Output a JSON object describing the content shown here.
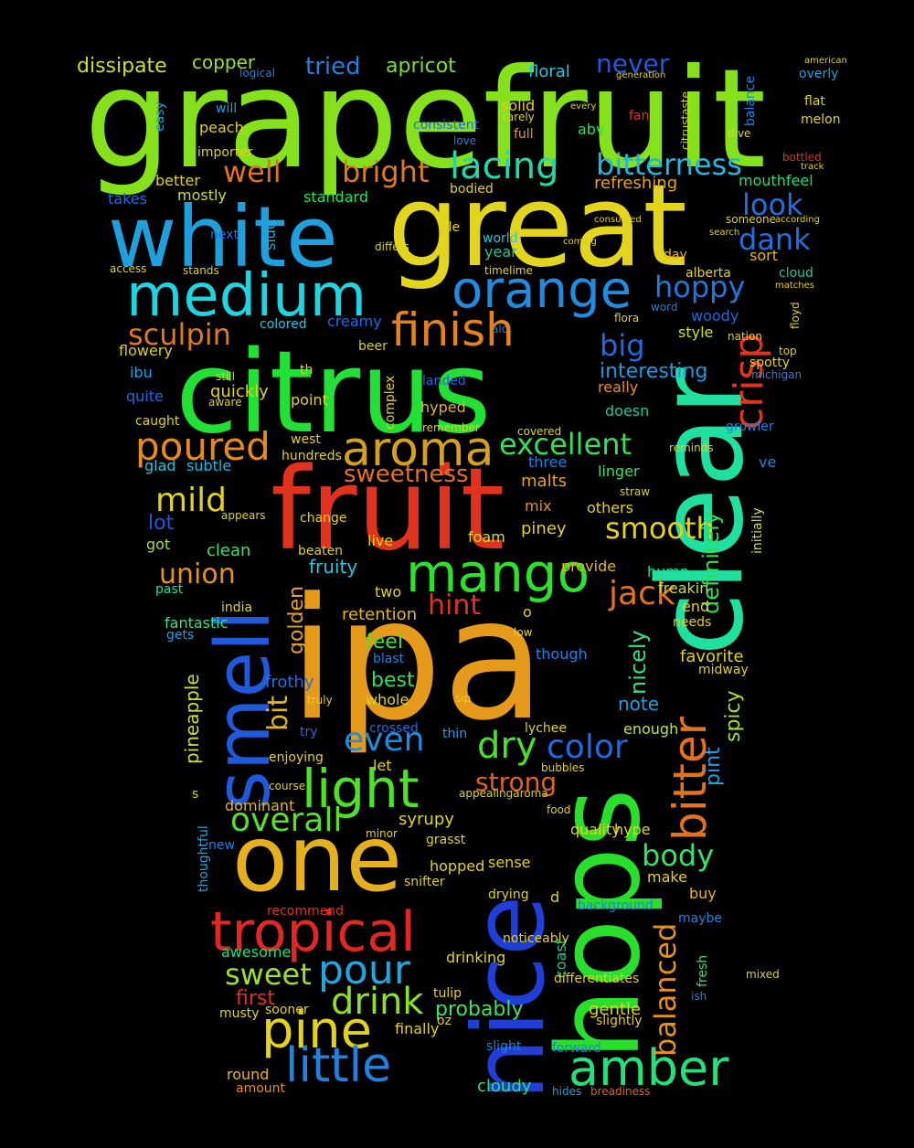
{
  "words": [
    {
      "text": "grapefruit",
      "color": "#84e11c"
    },
    {
      "text": "great",
      "color": "#e3d41e"
    },
    {
      "text": "white",
      "color": "#1fa0dc"
    },
    {
      "text": "citrus",
      "color": "#22e034"
    },
    {
      "text": "fruit",
      "color": "#e0321c"
    },
    {
      "text": "ipa",
      "color": "#e59a1b"
    },
    {
      "text": "clear",
      "color": "#1fe0a0"
    },
    {
      "text": "hops",
      "color": "#28e02c"
    },
    {
      "text": "nice",
      "color": "#1f3fd8"
    },
    {
      "text": "smell",
      "color": "#1f5adc"
    },
    {
      "text": "one",
      "color": "#e5b01d"
    },
    {
      "text": "medium",
      "color": "#1fd4e0"
    },
    {
      "text": "orange",
      "color": "#1f8ce0"
    },
    {
      "text": "tropical",
      "color": "#e02820"
    },
    {
      "text": "bitter",
      "color": "#e5721b"
    },
    {
      "text": "mango",
      "color": "#2ee02a"
    },
    {
      "text": "light",
      "color": "#4fe02a"
    },
    {
      "text": "aroma",
      "color": "#d6a01d"
    },
    {
      "text": "pine",
      "color": "#e2d21c"
    },
    {
      "text": "little",
      "color": "#1f82e0"
    },
    {
      "text": "amber",
      "color": "#24e07a"
    },
    {
      "text": "finish",
      "color": "#e5821b"
    },
    {
      "text": "poured",
      "color": "#e58a1b"
    },
    {
      "text": "crisp",
      "color": "#e0351c"
    },
    {
      "text": "pour",
      "color": "#1fa8e0"
    },
    {
      "text": "overall",
      "color": "#56e02a"
    },
    {
      "text": "lacing",
      "color": "#22d8a8"
    },
    {
      "text": "bitterness",
      "color": "#1fb8e0"
    },
    {
      "text": "excellent",
      "color": "#32e05a"
    },
    {
      "text": "sweetness",
      "color": "#e5721b"
    },
    {
      "text": "smooth",
      "color": "#e5d01b"
    },
    {
      "text": "dank",
      "color": "#1f70e0"
    },
    {
      "text": "look",
      "color": "#1f70e0"
    },
    {
      "text": "hoppy",
      "color": "#1f78dc"
    },
    {
      "text": "bright",
      "color": "#e07a1c"
    },
    {
      "text": "well",
      "color": "#e2701c"
    },
    {
      "text": "sculpin",
      "color": "#e0781c"
    },
    {
      "text": "mild",
      "color": "#e5d01b"
    },
    {
      "text": "union",
      "color": "#e5921b"
    },
    {
      "text": "jack",
      "color": "#e5721b"
    },
    {
      "text": "hint",
      "color": "#e0321c"
    },
    {
      "text": "even",
      "color": "#1f8ce0"
    },
    {
      "text": "dry",
      "color": "#48e02a"
    },
    {
      "text": "color",
      "color": "#1f6ae0"
    },
    {
      "text": "strong",
      "color": "#e0621c"
    },
    {
      "text": "body",
      "color": "#36e06a"
    },
    {
      "text": "drink",
      "color": "#8ce02a"
    },
    {
      "text": "sweet",
      "color": "#9ce02a"
    },
    {
      "text": "balanced",
      "color": "#e5921b"
    },
    {
      "text": "big",
      "color": "#1f6ae0"
    },
    {
      "text": "interesting",
      "color": "#1f9ae0"
    },
    {
      "text": "definitely",
      "color": "#26e052"
    },
    {
      "text": "golden",
      "color": "#e5a21b"
    },
    {
      "text": "bit",
      "color": "#e5b61b"
    },
    {
      "text": "nicely",
      "color": "#32e07a"
    },
    {
      "text": "spicy",
      "color": "#a8e02a"
    },
    {
      "text": "pint",
      "color": "#1fa0e0"
    },
    {
      "text": "probably",
      "color": "#3ee062"
    },
    {
      "text": "first",
      "color": "#e0321c"
    },
    {
      "text": "pineapple",
      "color": "#c8e02a"
    },
    {
      "text": "gentle",
      "color": "#e2d21c"
    },
    {
      "text": "cloudy",
      "color": "#2ee06a"
    },
    {
      "text": "never",
      "color": "#1f58e0"
    },
    {
      "text": "tried",
      "color": "#1f82e0"
    },
    {
      "text": "apricot",
      "color": "#7ce02a"
    },
    {
      "text": "dissipate",
      "color": "#c8e02a"
    },
    {
      "text": "copper",
      "color": "#a0e02a"
    },
    {
      "text": "floral",
      "color": "#22c8e0"
    },
    {
      "text": "refreshing",
      "color": "#e5a21b"
    },
    {
      "text": "mouthfeel",
      "color": "#1ae078"
    },
    {
      "text": "frothy",
      "color": "#1f70e0"
    },
    {
      "text": "best",
      "color": "#2ee05a"
    },
    {
      "text": "whole",
      "color": "#e2d21c"
    },
    {
      "text": "favorite",
      "color": "#e2d21c"
    },
    {
      "text": "note",
      "color": "#1fa0e0"
    },
    {
      "text": "feel",
      "color": "#4fe02a"
    },
    {
      "text": "lot",
      "color": "#1f58e0"
    },
    {
      "text": "clean",
      "color": "#3ee06a"
    },
    {
      "text": "fantastic",
      "color": "#38e08a"
    },
    {
      "text": "retention",
      "color": "#e5b61b"
    },
    {
      "text": "fruity",
      "color": "#22c8e0"
    },
    {
      "text": "foam",
      "color": "#c8e02a"
    },
    {
      "text": "malts",
      "color": "#e0a21c"
    },
    {
      "text": "piney",
      "color": "#e2d21c"
    },
    {
      "text": "hump",
      "color": "#22e0a0"
    },
    {
      "text": "provide",
      "color": "#e5b61b"
    },
    {
      "text": "others",
      "color": "#e5d01b"
    },
    {
      "text": "linger",
      "color": "#36e06a"
    },
    {
      "text": "three",
      "color": "#1f82e0"
    },
    {
      "text": "live",
      "color": "#e2d21c"
    },
    {
      "text": "mix",
      "color": "#e5921b"
    },
    {
      "text": "two",
      "color": "#e2d21c"
    },
    {
      "text": "glad",
      "color": "#22c8e0"
    },
    {
      "text": "subtle",
      "color": "#1fb8e0"
    },
    {
      "text": "got",
      "color": "#a8e02a"
    },
    {
      "text": "past",
      "color": "#1ae0a0"
    },
    {
      "text": "sort",
      "color": "#e5b61b"
    },
    {
      "text": "woody",
      "color": "#1f6ae0"
    },
    {
      "text": "style",
      "color": "#c8e02a"
    },
    {
      "text": "doesn",
      "color": "#1ac8a0"
    },
    {
      "text": "really",
      "color": "#e5921b"
    },
    {
      "text": "hyped",
      "color": "#e5b61b"
    },
    {
      "text": "quickly",
      "color": "#e2d21c"
    },
    {
      "text": "caught",
      "color": "#e2d21c"
    },
    {
      "text": "quite",
      "color": "#1f6ae0"
    },
    {
      "text": "ibu",
      "color": "#1fa0e0"
    },
    {
      "text": "flowery",
      "color": "#d8d21c"
    },
    {
      "text": "colored",
      "color": "#22c8e0"
    },
    {
      "text": "creamy",
      "color": "#1f6ae0"
    },
    {
      "text": "beer",
      "color": "#d8d21c"
    },
    {
      "text": "abv",
      "color": "#26e05a"
    },
    {
      "text": "fan",
      "color": "#e0321c"
    },
    {
      "text": "full",
      "color": "#e59a1b"
    },
    {
      "text": "solid",
      "color": "#e5d01b"
    },
    {
      "text": "peach",
      "color": "#e2d21c"
    },
    {
      "text": "better",
      "color": "#e2d21c"
    },
    {
      "text": "mostly",
      "color": "#c8e02a"
    },
    {
      "text": "takes",
      "color": "#1f6ae0"
    },
    {
      "text": "standard",
      "color": "#26e05a"
    },
    {
      "text": "bodied",
      "color": "#e2d21c"
    },
    {
      "text": "side",
      "color": "#1fa8e0"
    },
    {
      "text": "next",
      "color": "#1f70e0"
    },
    {
      "text": "year",
      "color": "#1ac8a0"
    },
    {
      "text": "day",
      "color": "#e5b61b"
    },
    {
      "text": "ale",
      "color": "#e2d21c"
    },
    {
      "text": "world",
      "color": "#22c8e0"
    },
    {
      "text": "alberta",
      "color": "#e5d01b"
    },
    {
      "text": "cloud",
      "color": "#1ac8a0"
    },
    {
      "text": "end",
      "color": "#e2d21c"
    },
    {
      "text": "freakin",
      "color": "#c8e02a"
    },
    {
      "text": "needs",
      "color": "#e2d21c"
    },
    {
      "text": "midway",
      "color": "#e2d21c"
    },
    {
      "text": "enough",
      "color": "#c8e02a"
    },
    {
      "text": "lychee",
      "color": "#e2d21c"
    },
    {
      "text": "thin",
      "color": "#1fa0e0"
    },
    {
      "text": "let",
      "color": "#e2d21c"
    },
    {
      "text": "sense",
      "color": "#e2d21c"
    },
    {
      "text": "make",
      "color": "#e2d21c"
    },
    {
      "text": "buy",
      "color": "#e5b61b"
    },
    {
      "text": "maybe",
      "color": "#1f82e0"
    },
    {
      "text": "fresh",
      "color": "#3ee062"
    },
    {
      "text": "coast",
      "color": "#1ac8a0"
    },
    {
      "text": "drinking",
      "color": "#e2d21c"
    },
    {
      "text": "differentiates",
      "color": "#e2d21c"
    },
    {
      "text": "slightly",
      "color": "#e2d21c"
    },
    {
      "text": "forward",
      "color": "#1f82e0"
    },
    {
      "text": "hides",
      "color": "#1fa0e0"
    },
    {
      "text": "breadiness",
      "color": "#e0621c"
    },
    {
      "text": "round",
      "color": "#e5b61b"
    },
    {
      "text": "amount",
      "color": "#e5921b"
    },
    {
      "text": "finally",
      "color": "#e2d21c"
    },
    {
      "text": "slight",
      "color": "#1f82e0"
    },
    {
      "text": "tulip",
      "color": "#e2d21c"
    },
    {
      "text": "oz",
      "color": "#e2d21c"
    },
    {
      "text": "musty",
      "color": "#e2d21c"
    },
    {
      "text": "sooner",
      "color": "#e2d21c"
    },
    {
      "text": "awesome",
      "color": "#1ae078"
    },
    {
      "text": "dominant",
      "color": "#e5b61b"
    },
    {
      "text": "syrupy",
      "color": "#e2d21c"
    },
    {
      "text": "quality",
      "color": "#e2d21c"
    },
    {
      "text": "hype",
      "color": "#e2d21c"
    },
    {
      "text": "hopped",
      "color": "#e2d21c"
    },
    {
      "text": "snifter",
      "color": "#e2d21c"
    },
    {
      "text": "background",
      "color": "#1f82e0"
    },
    {
      "text": "noticeably",
      "color": "#e2d21c"
    },
    {
      "text": "recommend",
      "color": "#e0321c"
    },
    {
      "text": "new",
      "color": "#1f82e0"
    },
    {
      "text": "thoughtful",
      "color": "#1fa0e0"
    },
    {
      "text": "enjoying",
      "color": "#e2d21c"
    },
    {
      "text": "try",
      "color": "#1f6ae0"
    },
    {
      "text": "crossed",
      "color": "#1f6ae0"
    },
    {
      "text": "point",
      "color": "#e2d21c"
    },
    {
      "text": "complex",
      "color": "#e2d21c"
    },
    {
      "text": "landed",
      "color": "#1f6ae0"
    },
    {
      "text": "hundreds",
      "color": "#e2d21c"
    },
    {
      "text": "west",
      "color": "#e2d21c"
    },
    {
      "text": "change",
      "color": "#e2d21c"
    },
    {
      "text": "beaten",
      "color": "#e2d21c"
    },
    {
      "text": "gets",
      "color": "#1fa0e0"
    },
    {
      "text": "india",
      "color": "#e2d21c"
    },
    {
      "text": "spotty",
      "color": "#e2d21c"
    },
    {
      "text": "growler",
      "color": "#1f82e0"
    },
    {
      "text": "initially",
      "color": "#c8e02a"
    },
    {
      "text": "ve",
      "color": "#1f82e0"
    },
    {
      "text": "flat",
      "color": "#e2d21c"
    },
    {
      "text": "melon",
      "color": "#e2d21c"
    },
    {
      "text": "overly",
      "color": "#1fa0e0"
    },
    {
      "text": "balance",
      "color": "#1f82e0"
    },
    {
      "text": "dive",
      "color": "#e2d21c"
    },
    {
      "text": "consistent",
      "color": "#1f6ae0"
    },
    {
      "text": "love",
      "color": "#1f82e0"
    },
    {
      "text": "importer",
      "color": "#e2d21c"
    },
    {
      "text": "will",
      "color": "#1fa0e0"
    },
    {
      "text": "easy",
      "color": "#1fa0e0"
    },
    {
      "text": "logical",
      "color": "#1f82e0"
    },
    {
      "text": "flora",
      "color": "#e2d21c"
    },
    {
      "text": "word",
      "color": "#1f82e0"
    },
    {
      "text": "alc",
      "color": "#1f82e0"
    },
    {
      "text": "floyd",
      "color": "#e2d21c"
    },
    {
      "text": "stands",
      "color": "#e2d21c"
    },
    {
      "text": "access",
      "color": "#e2d21c"
    },
    {
      "text": "timelime",
      "color": "#e2d21c"
    },
    {
      "text": "differs",
      "color": "#e2d21c"
    },
    {
      "text": "still",
      "color": "#e2d21c"
    },
    {
      "text": "aware",
      "color": "#e2d21c"
    },
    {
      "text": "th",
      "color": "#e2d21c"
    },
    {
      "text": "remember",
      "color": "#e2d21c"
    },
    {
      "text": "covered",
      "color": "#e2d21c"
    },
    {
      "text": "reminds",
      "color": "#e2d21c"
    },
    {
      "text": "straw",
      "color": "#e2d21c"
    },
    {
      "text": "appears",
      "color": "#e2d21c"
    },
    {
      "text": "o",
      "color": "#e2d21c"
    },
    {
      "text": "low",
      "color": "#e2d21c"
    },
    {
      "text": "though",
      "color": "#1f82e0"
    },
    {
      "text": "blast",
      "color": "#1f82e0"
    },
    {
      "text": "truly",
      "color": "#e2d21c"
    },
    {
      "text": "sip",
      "color": "#e2d21c"
    },
    {
      "text": "d",
      "color": "#e2d21c"
    },
    {
      "text": "s",
      "color": "#e2d21c"
    },
    {
      "text": "course",
      "color": "#e2d21c"
    },
    {
      "text": "food",
      "color": "#e2d21c"
    },
    {
      "text": "bubbles",
      "color": "#e2d21c"
    },
    {
      "text": "appealingaroma",
      "color": "#e2d21c"
    },
    {
      "text": "drying",
      "color": "#e2d21c"
    },
    {
      "text": "grasst",
      "color": "#e2d21c"
    },
    {
      "text": "minor",
      "color": "#e2d21c"
    },
    {
      "text": "ish",
      "color": "#1f82e0"
    },
    {
      "text": "mixed",
      "color": "#e2d21c"
    },
    {
      "text": "nation",
      "color": "#e2d21c"
    },
    {
      "text": "top",
      "color": "#e2d21c"
    },
    {
      "text": "michigan",
      "color": "#1f82e0"
    },
    {
      "text": "according",
      "color": "#e2d21c"
    },
    {
      "text": "someone",
      "color": "#e2d21c"
    },
    {
      "text": "search",
      "color": "#e2d21c"
    },
    {
      "text": "matches",
      "color": "#e2d21c"
    },
    {
      "text": "coming",
      "color": "#e2d21c"
    },
    {
      "text": "consumed",
      "color": "#e2d21c"
    },
    {
      "text": "generation",
      "color": "#e2d21c"
    },
    {
      "text": "american",
      "color": "#e2d21c"
    },
    {
      "text": "citrustaste",
      "color": "#e2d21c"
    },
    {
      "text": "every",
      "color": "#e2d21c"
    },
    {
      "text": "rarely",
      "color": "#e2d21c"
    },
    {
      "text": "track",
      "color": "#e2d21c"
    },
    {
      "text": "bottled",
      "color": "#e0321c"
    }
  ]
}
